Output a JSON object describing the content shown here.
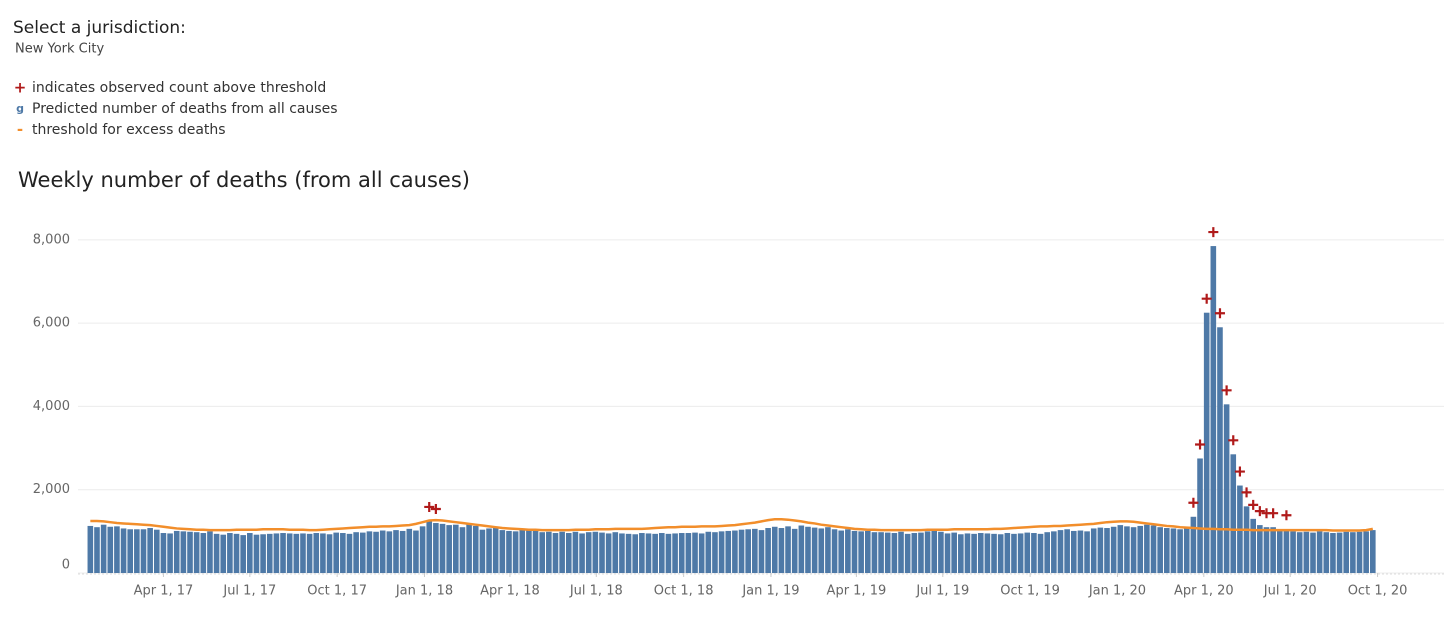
{
  "jurisdiction_prompt": "Select a jurisdiction:",
  "jurisdiction": "New York City",
  "chart_data": {
    "type": "bar",
    "title": "Weekly number of deaths (from all causes)",
    "x": [
      "2017-01-14",
      "2017-01-21",
      "2017-01-28",
      "2017-02-04",
      "2017-02-11",
      "2017-02-18",
      "2017-02-25",
      "2017-03-04",
      "2017-03-11",
      "2017-03-18",
      "2017-03-25",
      "2017-04-01",
      "2017-04-08",
      "2017-04-15",
      "2017-04-22",
      "2017-04-29",
      "2017-05-06",
      "2017-05-13",
      "2017-05-20",
      "2017-05-27",
      "2017-06-03",
      "2017-06-10",
      "2017-06-17",
      "2017-06-24",
      "2017-07-01",
      "2017-07-08",
      "2017-07-15",
      "2017-07-22",
      "2017-07-29",
      "2017-08-05",
      "2017-08-12",
      "2017-08-19",
      "2017-08-26",
      "2017-09-02",
      "2017-09-09",
      "2017-09-16",
      "2017-09-23",
      "2017-09-30",
      "2017-10-07",
      "2017-10-14",
      "2017-10-21",
      "2017-10-28",
      "2017-11-04",
      "2017-11-11",
      "2017-11-18",
      "2017-11-25",
      "2017-12-02",
      "2017-12-09",
      "2017-12-16",
      "2017-12-23",
      "2017-12-30",
      "2018-01-06",
      "2018-01-13",
      "2018-01-20",
      "2018-01-27",
      "2018-02-03",
      "2018-02-10",
      "2018-02-17",
      "2018-02-24",
      "2018-03-03",
      "2018-03-10",
      "2018-03-17",
      "2018-03-24",
      "2018-03-31",
      "2018-04-07",
      "2018-04-14",
      "2018-04-21",
      "2018-04-28",
      "2018-05-05",
      "2018-05-12",
      "2018-05-19",
      "2018-05-26",
      "2018-06-02",
      "2018-06-09",
      "2018-06-16",
      "2018-06-23",
      "2018-06-30",
      "2018-07-07",
      "2018-07-14",
      "2018-07-21",
      "2018-07-28",
      "2018-08-04",
      "2018-08-11",
      "2018-08-18",
      "2018-08-25",
      "2018-09-01",
      "2018-09-08",
      "2018-09-15",
      "2018-09-22",
      "2018-09-29",
      "2018-10-06",
      "2018-10-13",
      "2018-10-20",
      "2018-10-27",
      "2018-11-03",
      "2018-11-10",
      "2018-11-17",
      "2018-11-24",
      "2018-12-01",
      "2018-12-08",
      "2018-12-15",
      "2018-12-22",
      "2018-12-29",
      "2019-01-05",
      "2019-01-12",
      "2019-01-19",
      "2019-01-26",
      "2019-02-02",
      "2019-02-09",
      "2019-02-16",
      "2019-02-23",
      "2019-03-02",
      "2019-03-09",
      "2019-03-16",
      "2019-03-23",
      "2019-03-30",
      "2019-04-06",
      "2019-04-13",
      "2019-04-20",
      "2019-04-27",
      "2019-05-04",
      "2019-05-11",
      "2019-05-18",
      "2019-05-25",
      "2019-06-01",
      "2019-06-08",
      "2019-06-15",
      "2019-06-22",
      "2019-06-29",
      "2019-07-06",
      "2019-07-13",
      "2019-07-20",
      "2019-07-27",
      "2019-08-03",
      "2019-08-10",
      "2019-08-17",
      "2019-08-24",
      "2019-08-31",
      "2019-09-07",
      "2019-09-14",
      "2019-09-21",
      "2019-09-28",
      "2019-10-05",
      "2019-10-12",
      "2019-10-19",
      "2019-10-26",
      "2019-11-02",
      "2019-11-09",
      "2019-11-16",
      "2019-11-23",
      "2019-11-30",
      "2019-12-07",
      "2019-12-14",
      "2019-12-21",
      "2019-12-28",
      "2020-01-04",
      "2020-01-11",
      "2020-01-18",
      "2020-01-25",
      "2020-02-01",
      "2020-02-08",
      "2020-02-15",
      "2020-02-22",
      "2020-02-29",
      "2020-03-07",
      "2020-03-14",
      "2020-03-21",
      "2020-03-28",
      "2020-04-04",
      "2020-04-11",
      "2020-04-18",
      "2020-04-25",
      "2020-05-02",
      "2020-05-09",
      "2020-05-16",
      "2020-05-23",
      "2020-05-30",
      "2020-06-06",
      "2020-06-13",
      "2020-06-20",
      "2020-06-27",
      "2020-07-04",
      "2020-07-11",
      "2020-07-18",
      "2020-07-25",
      "2020-08-01",
      "2020-08-08",
      "2020-08-15",
      "2020-08-22",
      "2020-08-29",
      "2020-09-05",
      "2020-09-12",
      "2020-09-19",
      "2020-09-26"
    ],
    "series": [
      {
        "name": "indicates observed count above threshold",
        "symbol": "+",
        "color": "#b01a1a",
        "values": [
          null,
          null,
          null,
          null,
          null,
          null,
          null,
          null,
          null,
          null,
          null,
          null,
          null,
          null,
          null,
          null,
          null,
          null,
          null,
          null,
          null,
          null,
          null,
          null,
          null,
          null,
          null,
          null,
          null,
          null,
          null,
          null,
          null,
          null,
          null,
          null,
          null,
          null,
          null,
          null,
          null,
          null,
          null,
          null,
          null,
          null,
          null,
          null,
          null,
          null,
          null,
          1250,
          1200,
          null,
          null,
          null,
          null,
          null,
          null,
          null,
          null,
          null,
          null,
          null,
          null,
          null,
          null,
          null,
          null,
          null,
          null,
          null,
          null,
          null,
          null,
          null,
          null,
          null,
          null,
          null,
          null,
          null,
          null,
          null,
          null,
          null,
          null,
          null,
          null,
          null,
          null,
          null,
          null,
          null,
          null,
          null,
          null,
          null,
          null,
          null,
          null,
          null,
          null,
          null,
          null,
          null,
          null,
          null,
          null,
          null,
          null,
          null,
          null,
          null,
          null,
          null,
          null,
          null,
          null,
          null,
          null,
          null,
          null,
          null,
          null,
          null,
          null,
          null,
          null,
          null,
          null,
          null,
          null,
          null,
          null,
          null,
          null,
          null,
          null,
          null,
          null,
          null,
          null,
          null,
          null,
          null,
          null,
          null,
          null,
          null,
          null,
          null,
          null,
          null,
          null,
          null,
          null,
          null,
          null,
          null,
          null,
          null,
          null,
          null,
          null,
          null,
          1350,
          2750,
          6250,
          7850,
          5900,
          4050,
          2850,
          2100,
          1600,
          1300,
          1150,
          1100,
          1100,
          null,
          1050,
          null,
          null,
          null,
          null,
          null,
          null,
          null,
          null,
          null,
          null,
          null,
          null,
          null
        ]
      },
      {
        "name": "Predicted number of deaths from all causes",
        "symbol": "g",
        "color": "#4e79a7",
        "values": [
          1130,
          1100,
          1160,
          1110,
          1120,
          1070,
          1050,
          1050,
          1050,
          1080,
          1040,
          960,
          950,
          1010,
          1000,
          990,
          980,
          960,
          1000,
          940,
          920,
          960,
          940,
          910,
          960,
          920,
          930,
          940,
          950,
          960,
          950,
          940,
          950,
          940,
          960,
          950,
          930,
          970,
          960,
          940,
          980,
          970,
          1000,
          990,
          1020,
          1000,
          1030,
          1010,
          1060,
          1020,
          1120,
          1250,
          1200,
          1180,
          1150,
          1160,
          1100,
          1170,
          1130,
          1040,
          1070,
          1090,
          1030,
          1010,
          1000,
          1040,
          1040,
          1030,
          980,
          990,
          960,
          990,
          960,
          990,
          950,
          980,
          990,
          970,
          950,
          980,
          950,
          940,
          930,
          960,
          950,
          940,
          960,
          940,
          950,
          960,
          960,
          970,
          950,
          990,
          980,
          1000,
          1010,
          1020,
          1040,
          1050,
          1060,
          1030,
          1080,
          1110,
          1080,
          1120,
          1060,
          1140,
          1110,
          1090,
          1070,
          1100,
          1050,
          1020,
          1050,
          1010,
          1000,
          1010,
          980,
          980,
          970,
          960,
          990,
          940,
          960,
          970,
          1000,
          1010,
          990,
          950,
          970,
          930,
          950,
          940,
          960,
          950,
          940,
          930,
          960,
          940,
          950,
          970,
          960,
          940,
          980,
          1000,
          1030,
          1050,
          1010,
          1020,
          1000,
          1070,
          1090,
          1080,
          1110,
          1150,
          1120,
          1100,
          1130,
          1160,
          1140,
          1100,
          1080,
          1070,
          1050,
          1100,
          1350,
          2750,
          6250,
          7850,
          5900,
          4050,
          2850,
          2100,
          1600,
          1300,
          1150,
          1100,
          1100,
          1050,
          1050,
          1000,
          980,
          990,
          970,
          1000,
          980,
          960,
          970,
          990,
          980,
          990,
          1000,
          1030
        ]
      },
      {
        "name": "threshold for excess deaths",
        "symbol": "-",
        "color": "#f28e2b",
        "values": [
          1250,
          1250,
          1240,
          1220,
          1200,
          1190,
          1180,
          1170,
          1160,
          1150,
          1130,
          1110,
          1090,
          1070,
          1060,
          1050,
          1040,
          1040,
          1030,
          1030,
          1030,
          1030,
          1040,
          1040,
          1040,
          1040,
          1050,
          1050,
          1050,
          1050,
          1040,
          1040,
          1040,
          1030,
          1030,
          1040,
          1050,
          1060,
          1070,
          1080,
          1090,
          1100,
          1110,
          1110,
          1120,
          1120,
          1130,
          1140,
          1150,
          1180,
          1220,
          1260,
          1270,
          1260,
          1240,
          1220,
          1200,
          1180,
          1160,
          1140,
          1120,
          1100,
          1080,
          1070,
          1060,
          1050,
          1040,
          1040,
          1030,
          1030,
          1030,
          1030,
          1030,
          1040,
          1040,
          1040,
          1050,
          1050,
          1050,
          1060,
          1060,
          1060,
          1060,
          1060,
          1070,
          1080,
          1090,
          1100,
          1100,
          1110,
          1110,
          1110,
          1120,
          1120,
          1120,
          1130,
          1140,
          1150,
          1170,
          1190,
          1210,
          1240,
          1270,
          1290,
          1290,
          1280,
          1260,
          1240,
          1210,
          1190,
          1160,
          1140,
          1120,
          1100,
          1080,
          1060,
          1050,
          1040,
          1040,
          1030,
          1030,
          1030,
          1030,
          1030,
          1030,
          1030,
          1040,
          1040,
          1040,
          1040,
          1050,
          1050,
          1050,
          1050,
          1050,
          1050,
          1060,
          1060,
          1070,
          1080,
          1090,
          1100,
          1110,
          1120,
          1120,
          1130,
          1130,
          1140,
          1150,
          1160,
          1170,
          1180,
          1200,
          1220,
          1230,
          1240,
          1240,
          1230,
          1210,
          1190,
          1170,
          1150,
          1130,
          1120,
          1100,
          1090,
          1080,
          1070,
          1060,
          1060,
          1050,
          1050,
          1040,
          1040,
          1040,
          1030,
          1030,
          1030,
          1030,
          1030,
          1030,
          1030,
          1030,
          1030,
          1030,
          1030,
          1030,
          1020,
          1020,
          1020,
          1020,
          1020,
          1030,
          1060
        ]
      }
    ],
    "xlim": [
      "2017-01-01",
      "2020-12-10"
    ],
    "xticks": [
      {
        "value": "2017-04-01",
        "label": "Apr 1, 17"
      },
      {
        "value": "2017-07-01",
        "label": "Jul 1, 17"
      },
      {
        "value": "2017-10-01",
        "label": "Oct 1, 17"
      },
      {
        "value": "2018-01-01",
        "label": "Jan 1, 18"
      },
      {
        "value": "2018-04-01",
        "label": "Apr 1, 18"
      },
      {
        "value": "2018-07-01",
        "label": "Jul 1, 18"
      },
      {
        "value": "2018-10-01",
        "label": "Oct 1, 18"
      },
      {
        "value": "2019-01-01",
        "label": "Jan 1, 19"
      },
      {
        "value": "2019-04-01",
        "label": "Apr 1, 19"
      },
      {
        "value": "2019-07-01",
        "label": "Jul 1, 19"
      },
      {
        "value": "2019-10-01",
        "label": "Oct 1, 19"
      },
      {
        "value": "2020-01-01",
        "label": "Jan 1, 20"
      },
      {
        "value": "2020-04-01",
        "label": "Apr 1, 20"
      },
      {
        "value": "2020-07-01",
        "label": "Jul 1, 20"
      },
      {
        "value": "2020-10-01",
        "label": "Oct 1, 20"
      }
    ],
    "ylim": [
      0,
      8500
    ],
    "yticks": [
      0,
      {
        "value": 2000,
        "label": "2,000"
      },
      {
        "value": 4000,
        "label": "4,000"
      },
      {
        "value": 6000,
        "label": "6,000"
      },
      {
        "value": 8000,
        "label": "8,000"
      }
    ],
    "grid": true
  }
}
